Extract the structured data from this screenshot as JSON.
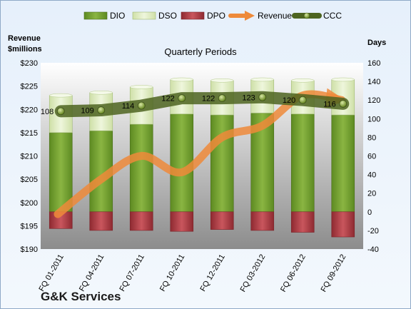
{
  "chart_data": {
    "type": "bar",
    "title": "Quarterly Periods",
    "company": "G&K Services",
    "y_left_label_line1": "Revenue",
    "y_left_label_line2": "$millions",
    "y_right_label": "Days",
    "categories": [
      "FQ 01-2011",
      "FQ 04-2011",
      "FQ 07-2011",
      "FQ 10-2011",
      "FQ 12-2011",
      "FQ 03-2012",
      "FQ 06-2012",
      "FQ 09-2012"
    ],
    "left_axis": {
      "min": 190,
      "max": 230,
      "step": 5,
      "tick_labels": [
        "$190",
        "$195",
        "$200",
        "$205",
        "$210",
        "$215",
        "$220",
        "$225",
        "$230"
      ]
    },
    "right_axis": {
      "min": -40,
      "max": 160,
      "step": 20,
      "tick_labels": [
        "-40",
        "-20",
        "0",
        "20",
        "40",
        "60",
        "80",
        "100",
        "120",
        "140",
        "160"
      ]
    },
    "series": [
      {
        "name": "DIO",
        "axis": "right",
        "kind": "stacked-bar",
        "color": "#6f9a2c",
        "values": [
          85,
          87,
          94,
          105,
          104,
          106,
          105,
          104
        ]
      },
      {
        "name": "DSO",
        "axis": "right",
        "kind": "stacked-bar",
        "color": "#dbe9bd",
        "values": [
          40,
          41,
          40,
          37,
          37,
          36,
          36,
          38
        ]
      },
      {
        "name": "DPO",
        "axis": "right",
        "kind": "negative-bar",
        "color": "#b3434a",
        "values": [
          -18,
          -20,
          -20,
          -21,
          -19,
          -20,
          -22,
          -27
        ]
      },
      {
        "name": "Revenue",
        "axis": "left",
        "kind": "line",
        "color": "#ee8a3a",
        "values": [
          197.5,
          205,
          210,
          206.5,
          214,
          216.5,
          223,
          222
        ]
      },
      {
        "name": "CCC",
        "axis": "right",
        "kind": "line",
        "color": "#5b7124",
        "values": [
          108,
          109,
          114,
          122,
          122,
          123,
          120,
          116
        ],
        "labels": [
          "108",
          "109",
          "114",
          "122",
          "122",
          "123",
          "120",
          "116"
        ]
      }
    ],
    "legend_placement": "top",
    "grid": false
  }
}
